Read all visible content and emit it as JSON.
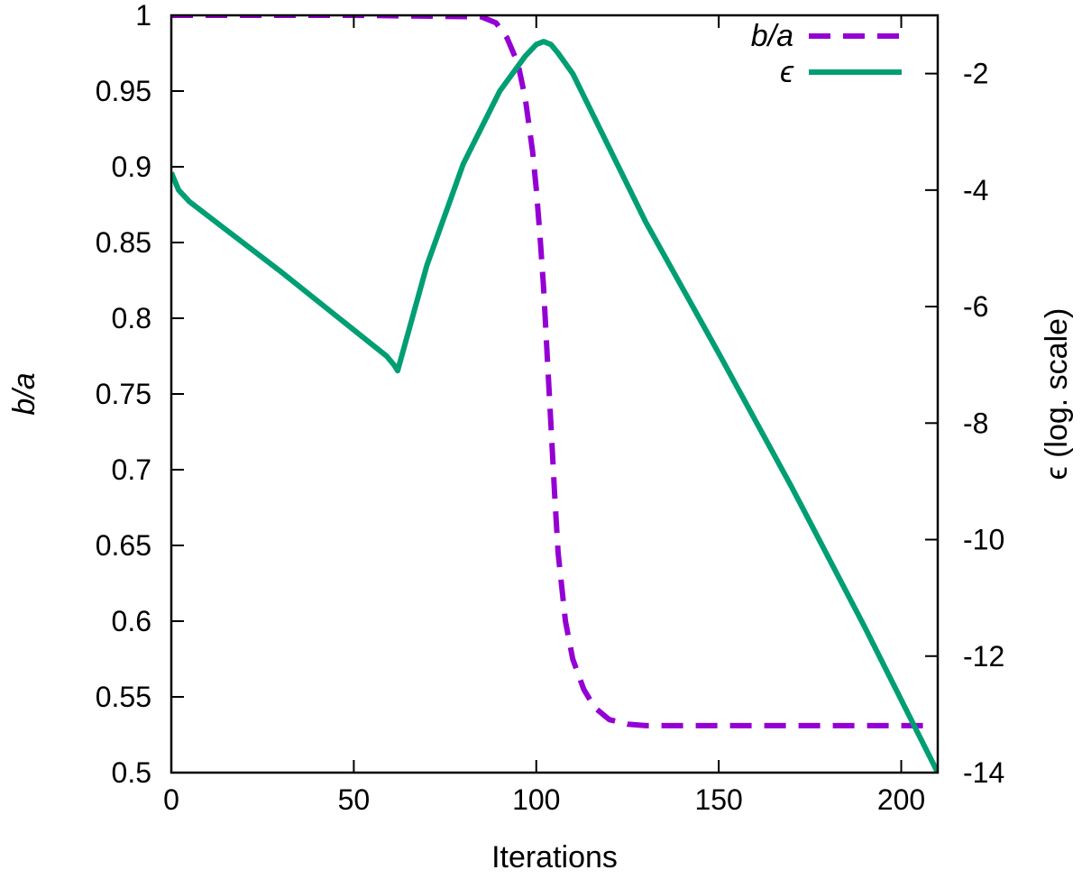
{
  "chart_data": {
    "type": "line",
    "xlabel": "Iterations",
    "ylabel_left": "b/a",
    "ylabel_right": "ϵ (log. scale)",
    "xlim": [
      0,
      210
    ],
    "ylim_left": [
      0.5,
      1.0
    ],
    "ylim_right": [
      -14,
      -1.0
    ],
    "x_ticks": [
      0,
      50,
      100,
      150,
      200
    ],
    "y_left_ticks": [
      0.5,
      0.55,
      0.6,
      0.65,
      0.7,
      0.75,
      0.8,
      0.85,
      0.9,
      0.95,
      1
    ],
    "y_right_ticks": [
      -14,
      -12,
      -10,
      -8,
      -6,
      -4,
      -2
    ],
    "grid": false,
    "legend_position": "top-right",
    "series": [
      {
        "name": "b/a",
        "axis": "left",
        "style": "dashed",
        "color": "#9400d3",
        "x": [
          0,
          50,
          85,
          89,
          92,
          95,
          97,
          99,
          100,
          101,
          102,
          103,
          104,
          105,
          106,
          108,
          110,
          113,
          116,
          120,
          125,
          130,
          150,
          180,
          206
        ],
        "y": [
          1.0,
          1.0,
          0.999,
          0.995,
          0.985,
          0.968,
          0.945,
          0.91,
          0.885,
          0.855,
          0.82,
          0.775,
          0.73,
          0.685,
          0.645,
          0.6,
          0.575,
          0.555,
          0.543,
          0.535,
          0.532,
          0.531,
          0.531,
          0.531,
          0.531
        ]
      },
      {
        "name": "ϵ",
        "axis": "right",
        "style": "solid",
        "color": "#009e73",
        "x": [
          0,
          2,
          5,
          30,
          55,
          59,
          61,
          62,
          70,
          80,
          90,
          97,
          100,
          102,
          104,
          106,
          110,
          130,
          150,
          170,
          190,
          210
        ],
        "y": [
          -3.7,
          -4.0,
          -4.2,
          -5.4,
          -6.65,
          -6.85,
          -7.0,
          -7.1,
          -5.3,
          -3.55,
          -2.3,
          -1.7,
          -1.5,
          -1.45,
          -1.5,
          -1.65,
          -2.0,
          -4.55,
          -6.8,
          -9.1,
          -11.5,
          -14.0
        ]
      }
    ]
  }
}
